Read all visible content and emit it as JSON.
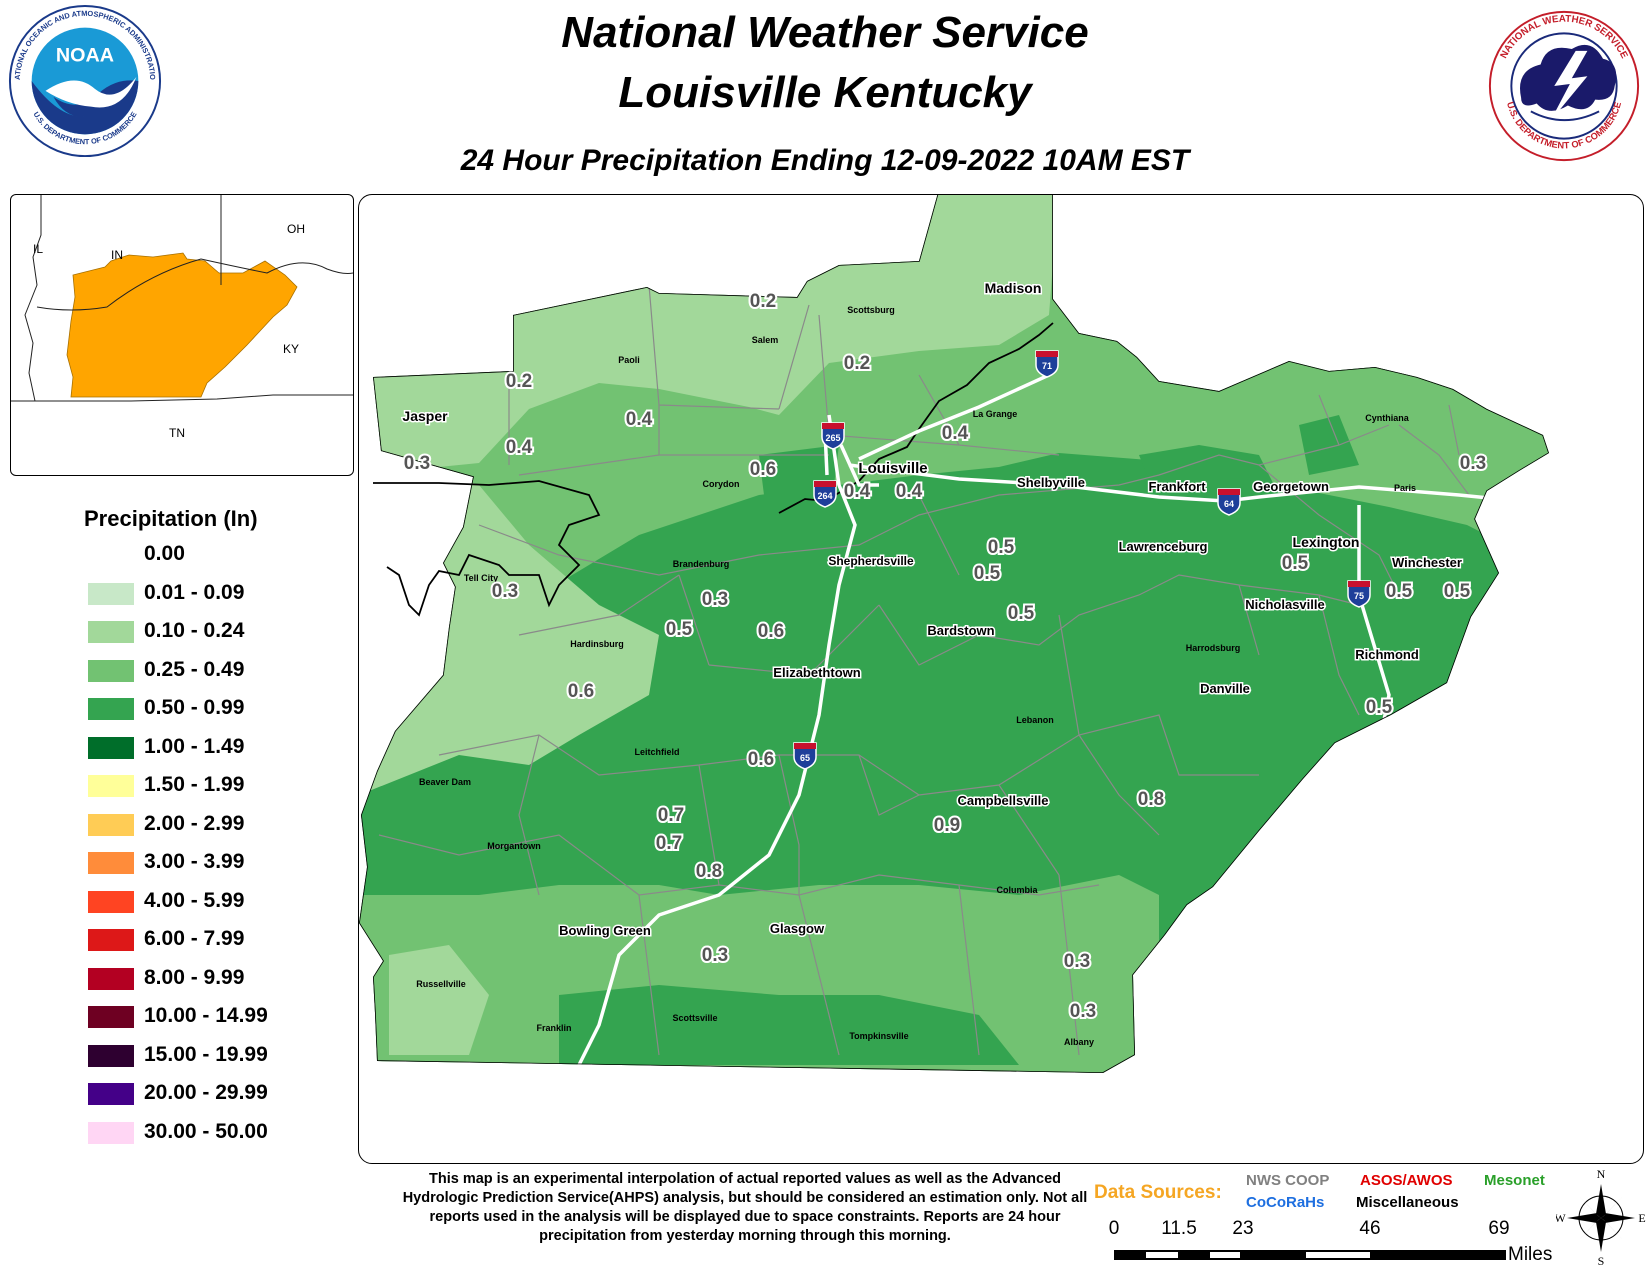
{
  "header": {
    "title_line1": "National Weather Service",
    "title_line2": "Louisville Kentucky",
    "subtitle": "24 Hour Precipitation Ending 12-09-2022 10AM EST"
  },
  "logos": {
    "noaa": {
      "text": "NOAA",
      "ring_top": "NATIONAL OCEANIC AND ATMOSPHERIC ADMINISTRATION",
      "ring_bottom": "U.S. DEPARTMENT OF COMMERCE"
    },
    "nws": {
      "ring_top": "NATIONAL WEATHER SERVICE",
      "ring_bottom": "U.S. DEPARTMENT OF COMMERCE"
    }
  },
  "inset": {
    "labels": [
      "IL",
      "IN",
      "OH",
      "KY",
      "TN"
    ],
    "highlight_color": "#ffa500"
  },
  "legend": {
    "title": "Precipitation (In)",
    "items": [
      {
        "label": "0.00",
        "color": "#ffffff"
      },
      {
        "label": "0.01 - 0.09",
        "color": "#c8e8c8"
      },
      {
        "label": "0.10 - 0.24",
        "color": "#a2d89a"
      },
      {
        "label": "0.25 - 0.49",
        "color": "#72c272"
      },
      {
        "label": "0.50 - 0.99",
        "color": "#34a450"
      },
      {
        "label": "1.00 - 1.49",
        "color": "#006e2a"
      },
      {
        "label": "1.50 - 1.99",
        "color": "#ffff99"
      },
      {
        "label": "2.00 - 2.99",
        "color": "#ffcc55"
      },
      {
        "label": "3.00 - 3.99",
        "color": "#ff8c3a"
      },
      {
        "label": "4.00 - 5.99",
        "color": "#ff4422"
      },
      {
        "label": "6.00 - 7.99",
        "color": "#dd1818"
      },
      {
        "label": "8.00 - 9.99",
        "color": "#b30022"
      },
      {
        "label": "10.00 - 14.99",
        "color": "#6e0022"
      },
      {
        "label": "15.00 - 19.99",
        "color": "#2e0030"
      },
      {
        "label": "20.00 - 29.99",
        "color": "#440088"
      },
      {
        "label": "30.00 - 50.00",
        "color": "#ffd6f4"
      }
    ]
  },
  "map": {
    "cities": [
      "Madison",
      "Scottsburg",
      "Salem",
      "Paoli",
      "Jasper",
      "La Grange",
      "Louisville",
      "Corydon",
      "Shelbyville",
      "Frankfort",
      "Georgetown",
      "Cynthiana",
      "Paris",
      "Lexington",
      "Winchester",
      "Lawrenceburg",
      "Shepherdsville",
      "Brandenburg",
      "Tell City",
      "Hardinsburg",
      "Bardstown",
      "Nicholasville",
      "Richmond",
      "Harrodsburg",
      "Danville",
      "Elizabethtown",
      "Lebanon",
      "Leitchfield",
      "Beaver Dam",
      "Campbellsville",
      "Morgantown",
      "Columbia",
      "Bowling Green",
      "Glasgow",
      "Russellville",
      "Scottsville",
      "Franklin",
      "Tompkinsville",
      "Albany"
    ],
    "interstates": [
      "71",
      "265",
      "264",
      "64",
      "75",
      "65"
    ],
    "obs_values": [
      "0.2",
      "0.2",
      "0.2",
      "0.4",
      "0.4",
      "0.3",
      "0.6",
      "0.4",
      "0.4",
      "0.4",
      "0.3",
      "0.5",
      "0.5",
      "0.5",
      "0.5",
      "0.5",
      "0.5",
      "0.3",
      "0.3",
      "0.5",
      "0.6",
      "0.6",
      "0.5",
      "0.6",
      "0.7",
      "0.7",
      "0.8",
      "0.9",
      "0.8",
      "0.3",
      "0.3",
      "0.3"
    ]
  },
  "footer": {
    "disclaimer": "This map is an experimental interpolation of actual reported values as well as the Advanced Hydrologic Prediction Service(AHPS) analysis, but should be considered an estimation only. Not all reports used in the analysis will be displayed due to space constraints. Reports are 24 hour precipitation from yesterday morning through this morning.",
    "data_sources_label": "Data Sources:",
    "sources": [
      {
        "label": "NWS COOP",
        "color": "#808080"
      },
      {
        "label": "ASOS/AWOS",
        "color": "#e00000"
      },
      {
        "label": "Mesonet",
        "color": "#2aa02a"
      },
      {
        "label": "CoCoRaHs",
        "color": "#1e6fe0"
      },
      {
        "label": "Miscellaneous",
        "color": "#000000"
      }
    ],
    "scale_ticks": [
      "0",
      "11.5",
      "23",
      "46",
      "69"
    ],
    "scale_unit": "Miles",
    "compass": {
      "n": "N",
      "s": "S",
      "e": "E",
      "w": "W"
    }
  }
}
